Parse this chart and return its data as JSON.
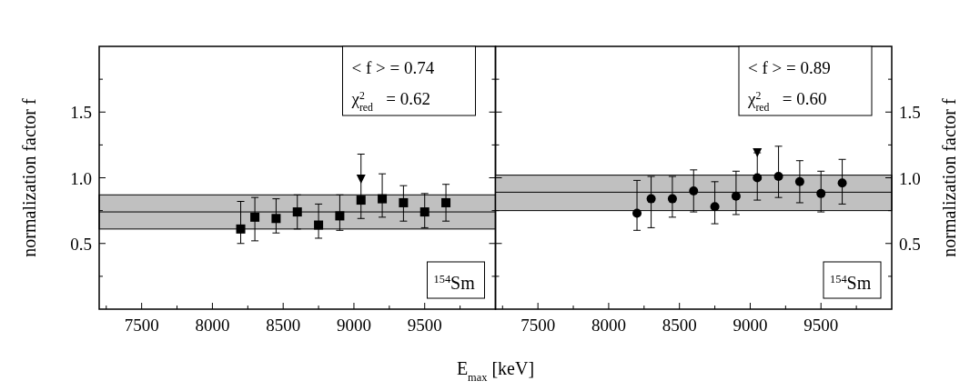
{
  "chart_data": [
    {
      "type": "scatter",
      "xlabel": "E$_{max}$ [keV]",
      "ylabel": "normalization factor f",
      "x": [
        8200,
        8300,
        8450,
        8600,
        8750,
        8900,
        9050,
        9200,
        9350,
        9500,
        9650
      ],
      "series": [
        {
          "color": "#000000",
          "marker": "square",
          "values": [
            0.61,
            0.7,
            0.69,
            0.74,
            0.64,
            0.71,
            0.83,
            0.84,
            0.81,
            0.74,
            0.81
          ],
          "errors": [
            [
              0.5,
              0.82
            ],
            [
              0.52,
              0.85
            ],
            [
              0.58,
              0.84
            ],
            [
              0.61,
              0.87
            ],
            [
              0.54,
              0.8
            ],
            [
              0.6,
              0.87
            ],
            [
              0.69,
              1.18
            ],
            [
              0.7,
              1.03
            ],
            [
              0.67,
              0.94
            ],
            [
              0.62,
              0.88
            ],
            [
              0.67,
              0.95
            ]
          ]
        },
        {
          "color": "#000000",
          "marker": "triangle",
          "x": [
            9050
          ],
          "values": [
            0.99
          ]
        }
      ],
      "xlim": [
        7200,
        10000
      ],
      "xticks": [
        {
          "value": 7250,
          "label": null
        },
        7500,
        {
          "value": 7750,
          "label": null
        },
        8000,
        {
          "value": 8250,
          "label": null
        },
        8500,
        {
          "value": 8750,
          "label": null
        },
        9000,
        {
          "value": 9250,
          "label": null
        },
        9500,
        {
          "value": 9750,
          "label": null
        }
      ],
      "ylim": [
        0,
        2
      ],
      "yticks": [
        {
          "value": 0.25,
          "label": null
        },
        {
          "value": 0.5,
          "label": "0.5"
        },
        {
          "value": 0.75,
          "label": null
        },
        {
          "value": 1,
          "label": "1.0"
        },
        {
          "value": 1.25,
          "label": null
        },
        {
          "value": 1.5,
          "label": "1.5"
        },
        {
          "value": 1.75,
          "label": null
        }
      ],
      "bands": [
        {
          "axis": "y",
          "from": 0.61,
          "to": 0.87,
          "color": "#c0c0c0"
        }
      ],
      "ref_lines": [
        {
          "axis": "y",
          "value": 0.74
        }
      ],
      "annotations": [
        "< f > = 0.74",
        "χ$^{2}$$_{red}$   = 0.62",
        "$^{154}$Sm"
      ]
    },
    {
      "type": "scatter",
      "ylabel": "normalization factor f",
      "x": [
        8200,
        8300,
        8450,
        8600,
        8750,
        8900,
        9050,
        9200,
        9350,
        9500,
        9650
      ],
      "series": [
        {
          "color": "#000000",
          "marker": "circle",
          "values": [
            0.73,
            0.84,
            0.84,
            0.9,
            0.78,
            0.86,
            1.0,
            1.01,
            0.97,
            0.88,
            0.96
          ],
          "errors": [
            [
              0.6,
              0.98
            ],
            [
              0.62,
              1.01
            ],
            [
              0.7,
              1.01
            ],
            [
              0.74,
              1.06
            ],
            [
              0.65,
              0.97
            ],
            [
              0.72,
              1.05
            ],
            [
              0.83,
              1.19
            ],
            [
              0.85,
              1.24
            ],
            [
              0.81,
              1.13
            ],
            [
              0.74,
              1.05
            ],
            [
              0.8,
              1.14
            ]
          ]
        },
        {
          "color": "#000000",
          "marker": "triangle",
          "x": [
            9050
          ],
          "values": [
            1.19
          ]
        }
      ],
      "xlim": [
        7200,
        10000
      ],
      "xticks": [
        {
          "value": 7250,
          "label": null
        },
        7500,
        {
          "value": 7750,
          "label": null
        },
        8000,
        {
          "value": 8250,
          "label": null
        },
        8500,
        {
          "value": 8750,
          "label": null
        },
        9000,
        {
          "value": 9250,
          "label": null
        },
        9500,
        {
          "value": 9750,
          "label": null
        }
      ],
      "ylim": [
        0,
        2
      ],
      "yticks": [
        {
          "value": 0.25,
          "label": null
        },
        {
          "value": 0.5,
          "label": "0.5"
        },
        {
          "value": 0.75,
          "label": null
        },
        {
          "value": 1,
          "label": "1.0"
        },
        {
          "value": 1.25,
          "label": null
        },
        {
          "value": 1.5,
          "label": "1.5"
        },
        {
          "value": 1.75,
          "label": null
        }
      ],
      "bands": [
        {
          "axis": "y",
          "from": 0.75,
          "to": 1.02,
          "color": "#c0c0c0"
        }
      ],
      "ref_lines": [
        {
          "axis": "y",
          "value": 0.89
        }
      ],
      "annotations": [
        "< f > = 0.89",
        "χ$^{2}$$_{red}$   = 0.60",
        "$^{154}$Sm"
      ]
    }
  ]
}
